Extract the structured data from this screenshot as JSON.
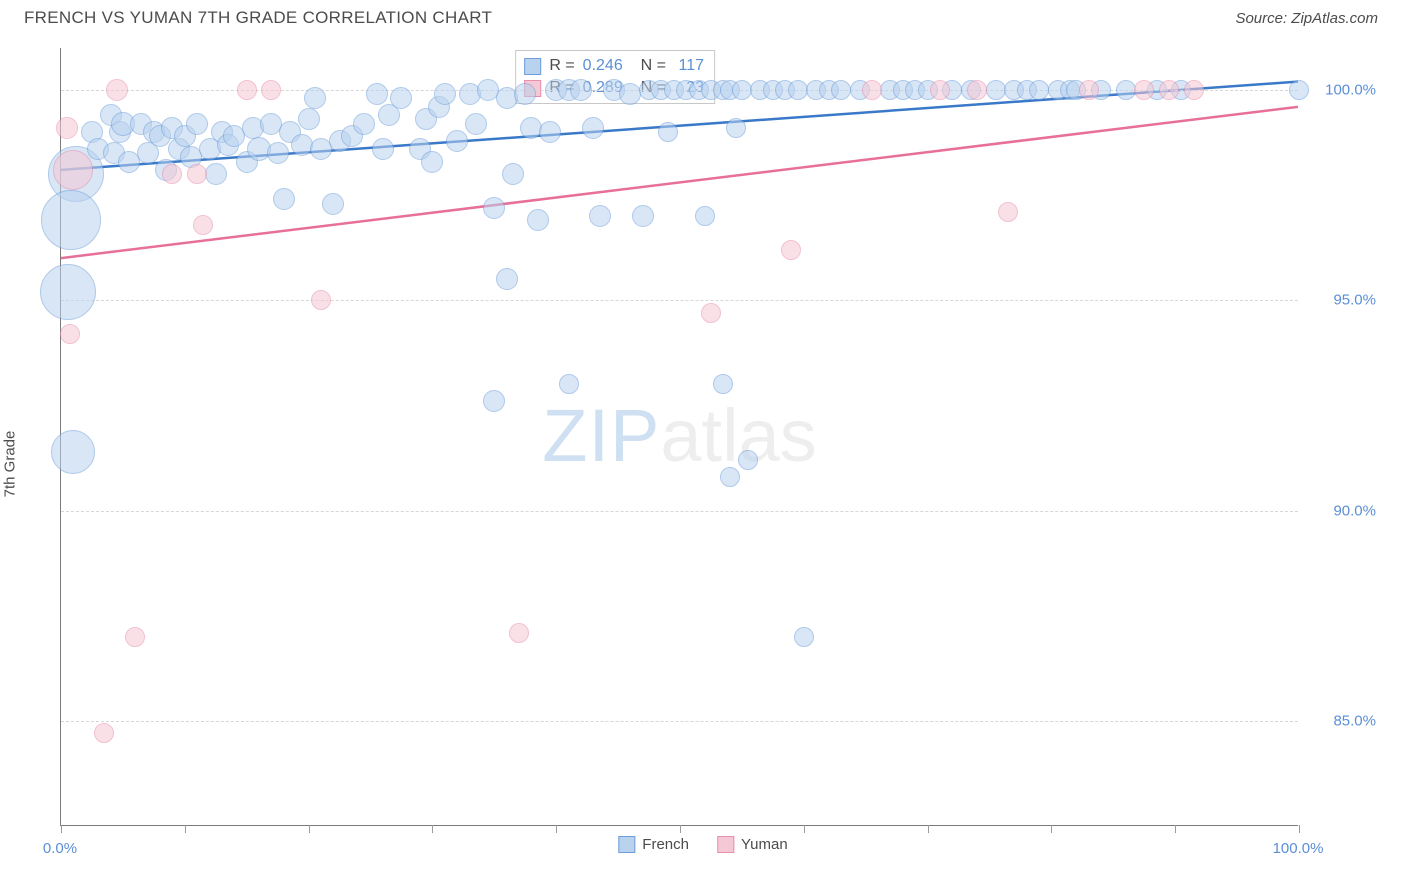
{
  "title": "FRENCH VS YUMAN 7TH GRADE CORRELATION CHART",
  "source": "Source: ZipAtlas.com",
  "watermark_zip": "ZIP",
  "watermark_atlas": "atlas",
  "chart": {
    "type": "scatter",
    "xlim": [
      0,
      100
    ],
    "ylim": [
      82.5,
      101.0
    ],
    "xlabel": "",
    "ylabel": "7th Grade",
    "xtick_label_min": "0.0%",
    "xtick_label_max": "100.0%",
    "xtick_positions": [
      0,
      10,
      20,
      30,
      40,
      50,
      60,
      70,
      80,
      90,
      100
    ],
    "yticks": [
      {
        "v": 85.0,
        "label": "85.0%"
      },
      {
        "v": 90.0,
        "label": "90.0%"
      },
      {
        "v": 95.0,
        "label": "95.0%"
      },
      {
        "v": 100.0,
        "label": "100.0%"
      }
    ],
    "background_color": "#ffffff",
    "grid_color": "#d7d7d7",
    "axis_color": "#7a7a7a",
    "series": [
      {
        "name": "French",
        "label": "French",
        "fill": "#b9d2ee",
        "stroke": "#6d9edb",
        "line_color": "#3a78c9",
        "fill_opacity": 0.55,
        "r": 0.246,
        "n": 117,
        "trend": {
          "x1": 0,
          "y1": 98.1,
          "x2": 100,
          "y2": 100.2
        },
        "points": [
          {
            "x": 1.2,
            "y": 98.0,
            "r": 28
          },
          {
            "x": 0.8,
            "y": 96.9,
            "r": 30
          },
          {
            "x": 0.6,
            "y": 95.2,
            "r": 28
          },
          {
            "x": 1.0,
            "y": 91.4,
            "r": 22
          },
          {
            "x": 2.5,
            "y": 99.0,
            "r": 11
          },
          {
            "x": 3.0,
            "y": 98.6,
            "r": 11
          },
          {
            "x": 4.0,
            "y": 99.4,
            "r": 11
          },
          {
            "x": 4.3,
            "y": 98.5,
            "r": 11
          },
          {
            "x": 4.8,
            "y": 99.0,
            "r": 11
          },
          {
            "x": 5.5,
            "y": 98.3,
            "r": 11
          },
          {
            "x": 5.0,
            "y": 99.2,
            "r": 12
          },
          {
            "x": 6.5,
            "y": 99.2,
            "r": 11
          },
          {
            "x": 7.0,
            "y": 98.5,
            "r": 11
          },
          {
            "x": 7.5,
            "y": 99.0,
            "r": 11
          },
          {
            "x": 8.0,
            "y": 98.9,
            "r": 11
          },
          {
            "x": 8.5,
            "y": 98.1,
            "r": 11
          },
          {
            "x": 9.0,
            "y": 99.1,
            "r": 11
          },
          {
            "x": 9.5,
            "y": 98.6,
            "r": 11
          },
          {
            "x": 10.0,
            "y": 98.9,
            "r": 11
          },
          {
            "x": 10.5,
            "y": 98.4,
            "r": 11
          },
          {
            "x": 11.0,
            "y": 99.2,
            "r": 11
          },
          {
            "x": 12.0,
            "y": 98.6,
            "r": 11
          },
          {
            "x": 12.5,
            "y": 98.0,
            "r": 11
          },
          {
            "x": 13.0,
            "y": 99.0,
            "r": 11
          },
          {
            "x": 13.5,
            "y": 98.7,
            "r": 11
          },
          {
            "x": 14.0,
            "y": 98.9,
            "r": 11
          },
          {
            "x": 15.0,
            "y": 98.3,
            "r": 11
          },
          {
            "x": 15.5,
            "y": 99.1,
            "r": 11
          },
          {
            "x": 16.0,
            "y": 98.6,
            "r": 12
          },
          {
            "x": 17.0,
            "y": 99.2,
            "r": 11
          },
          {
            "x": 17.5,
            "y": 98.5,
            "r": 11
          },
          {
            "x": 18.0,
            "y": 97.4,
            "r": 11
          },
          {
            "x": 18.5,
            "y": 99.0,
            "r": 11
          },
          {
            "x": 19.5,
            "y": 98.7,
            "r": 11
          },
          {
            "x": 20.0,
            "y": 99.3,
            "r": 11
          },
          {
            "x": 20.5,
            "y": 99.8,
            "r": 11
          },
          {
            "x": 21.0,
            "y": 98.6,
            "r": 11
          },
          {
            "x": 22.0,
            "y": 97.3,
            "r": 11
          },
          {
            "x": 22.5,
            "y": 98.8,
            "r": 11
          },
          {
            "x": 23.5,
            "y": 98.9,
            "r": 11
          },
          {
            "x": 24.5,
            "y": 99.2,
            "r": 11
          },
          {
            "x": 25.5,
            "y": 99.9,
            "r": 11
          },
          {
            "x": 26.5,
            "y": 99.4,
            "r": 11
          },
          {
            "x": 26.0,
            "y": 98.6,
            "r": 11
          },
          {
            "x": 29.0,
            "y": 98.6,
            "r": 11
          },
          {
            "x": 27.5,
            "y": 99.8,
            "r": 11
          },
          {
            "x": 29.5,
            "y": 99.3,
            "r": 11
          },
          {
            "x": 30.0,
            "y": 98.3,
            "r": 11
          },
          {
            "x": 30.5,
            "y": 99.6,
            "r": 11
          },
          {
            "x": 31.0,
            "y": 99.9,
            "r": 11
          },
          {
            "x": 32.0,
            "y": 98.8,
            "r": 11
          },
          {
            "x": 33.0,
            "y": 99.9,
            "r": 11
          },
          {
            "x": 33.5,
            "y": 99.2,
            "r": 11
          },
          {
            "x": 34.5,
            "y": 100.0,
            "r": 11
          },
          {
            "x": 35.0,
            "y": 97.2,
            "r": 11
          },
          {
            "x": 36.0,
            "y": 99.8,
            "r": 11
          },
          {
            "x": 36.5,
            "y": 98.0,
            "r": 11
          },
          {
            "x": 37.5,
            "y": 99.9,
            "r": 11
          },
          {
            "x": 38.0,
            "y": 99.1,
            "r": 11
          },
          {
            "x": 38.5,
            "y": 96.9,
            "r": 11
          },
          {
            "x": 39.5,
            "y": 99.0,
            "r": 11
          },
          {
            "x": 40.0,
            "y": 100.0,
            "r": 11
          },
          {
            "x": 41.0,
            "y": 100.0,
            "r": 11
          },
          {
            "x": 42.0,
            "y": 100.0,
            "r": 11
          },
          {
            "x": 43.0,
            "y": 99.1,
            "r": 11
          },
          {
            "x": 43.5,
            "y": 97.0,
            "r": 11
          },
          {
            "x": 35.0,
            "y": 92.6,
            "r": 11
          },
          {
            "x": 36.0,
            "y": 95.5,
            "r": 11
          },
          {
            "x": 44.7,
            "y": 100.0,
            "r": 11
          },
          {
            "x": 46.0,
            "y": 99.9,
            "r": 11
          },
          {
            "x": 41.0,
            "y": 93.0,
            "r": 10
          },
          {
            "x": 47.0,
            "y": 97.0,
            "r": 11
          },
          {
            "x": 47.5,
            "y": 100.0,
            "r": 10
          },
          {
            "x": 48.5,
            "y": 100.0,
            "r": 10
          },
          {
            "x": 49.5,
            "y": 100.0,
            "r": 10
          },
          {
            "x": 49.0,
            "y": 99.0,
            "r": 10
          },
          {
            "x": 50.5,
            "y": 100.0,
            "r": 10
          },
          {
            "x": 51.5,
            "y": 100.0,
            "r": 10
          },
          {
            "x": 52.0,
            "y": 97.0,
            "r": 10
          },
          {
            "x": 52.5,
            "y": 100.0,
            "r": 10
          },
          {
            "x": 53.5,
            "y": 100.0,
            "r": 10
          },
          {
            "x": 54.5,
            "y": 99.1,
            "r": 10
          },
          {
            "x": 54.0,
            "y": 100.0,
            "r": 10
          },
          {
            "x": 55.0,
            "y": 100.0,
            "r": 10
          },
          {
            "x": 55.5,
            "y": 91.2,
            "r": 10
          },
          {
            "x": 56.5,
            "y": 100.0,
            "r": 10
          },
          {
            "x": 57.5,
            "y": 100.0,
            "r": 10
          },
          {
            "x": 58.5,
            "y": 100.0,
            "r": 10
          },
          {
            "x": 59.5,
            "y": 100.0,
            "r": 10
          },
          {
            "x": 61.0,
            "y": 100.0,
            "r": 10
          },
          {
            "x": 62.0,
            "y": 100.0,
            "r": 10
          },
          {
            "x": 63.0,
            "y": 100.0,
            "r": 10
          },
          {
            "x": 64.5,
            "y": 100.0,
            "r": 10
          },
          {
            "x": 67.0,
            "y": 100.0,
            "r": 10
          },
          {
            "x": 68.0,
            "y": 100.0,
            "r": 10
          },
          {
            "x": 69.0,
            "y": 100.0,
            "r": 10
          },
          {
            "x": 70.0,
            "y": 100.0,
            "r": 10
          },
          {
            "x": 72.0,
            "y": 100.0,
            "r": 10
          },
          {
            "x": 73.5,
            "y": 100.0,
            "r": 10
          },
          {
            "x": 75.5,
            "y": 100.0,
            "r": 10
          },
          {
            "x": 77.0,
            "y": 100.0,
            "r": 10
          },
          {
            "x": 78.0,
            "y": 100.0,
            "r": 10
          },
          {
            "x": 79.0,
            "y": 100.0,
            "r": 10
          },
          {
            "x": 80.5,
            "y": 100.0,
            "r": 10
          },
          {
            "x": 81.5,
            "y": 100.0,
            "r": 10
          },
          {
            "x": 82.0,
            "y": 100.0,
            "r": 10
          },
          {
            "x": 84.0,
            "y": 100.0,
            "r": 10
          },
          {
            "x": 86.0,
            "y": 100.0,
            "r": 10
          },
          {
            "x": 88.5,
            "y": 100.0,
            "r": 10
          },
          {
            "x": 90.5,
            "y": 100.0,
            "r": 10
          },
          {
            "x": 100.0,
            "y": 100.0,
            "r": 10
          },
          {
            "x": 53.5,
            "y": 93.0,
            "r": 10
          },
          {
            "x": 54.0,
            "y": 90.8,
            "r": 10
          },
          {
            "x": 60.0,
            "y": 87.0,
            "r": 10
          }
        ]
      },
      {
        "name": "Yuman",
        "label": "Yuman",
        "fill": "#f5c8d5",
        "stroke": "#e98fae",
        "line_color": "#e76f9a",
        "fill_opacity": 0.55,
        "r": 0.289,
        "n": 23,
        "trend": {
          "x1": 0,
          "y1": 96.0,
          "x2": 100,
          "y2": 99.6
        },
        "points": [
          {
            "x": 0.5,
            "y": 99.1,
            "r": 11
          },
          {
            "x": 0.7,
            "y": 94.2,
            "r": 10
          },
          {
            "x": 1.0,
            "y": 98.1,
            "r": 20
          },
          {
            "x": 4.5,
            "y": 100.0,
            "r": 11
          },
          {
            "x": 3.5,
            "y": 84.7,
            "r": 10
          },
          {
            "x": 6.0,
            "y": 87.0,
            "r": 10
          },
          {
            "x": 9.0,
            "y": 98.0,
            "r": 10
          },
          {
            "x": 11.0,
            "y": 98.0,
            "r": 10
          },
          {
            "x": 11.5,
            "y": 96.8,
            "r": 10
          },
          {
            "x": 15.0,
            "y": 100.0,
            "r": 10
          },
          {
            "x": 17.0,
            "y": 100.0,
            "r": 10
          },
          {
            "x": 21.0,
            "y": 95.0,
            "r": 10
          },
          {
            "x": 37.0,
            "y": 87.1,
            "r": 10
          },
          {
            "x": 52.5,
            "y": 94.7,
            "r": 10
          },
          {
            "x": 59.0,
            "y": 96.2,
            "r": 10
          },
          {
            "x": 65.5,
            "y": 100.0,
            "r": 10
          },
          {
            "x": 71.0,
            "y": 100.0,
            "r": 10
          },
          {
            "x": 74.0,
            "y": 100.0,
            "r": 10
          },
          {
            "x": 76.5,
            "y": 97.1,
            "r": 10
          },
          {
            "x": 83.0,
            "y": 100.0,
            "r": 10
          },
          {
            "x": 87.5,
            "y": 100.0,
            "r": 10
          },
          {
            "x": 89.5,
            "y": 100.0,
            "r": 10
          },
          {
            "x": 91.5,
            "y": 100.0,
            "r": 10
          }
        ]
      }
    ],
    "rn_legend": {
      "r_label": "R =",
      "n_label": "N ="
    },
    "bottom_legend_series": [
      {
        "label": "French",
        "fill": "#b9d2ee",
        "stroke": "#6d9edb"
      },
      {
        "label": "Yuman",
        "fill": "#f5c8d5",
        "stroke": "#e98fae"
      }
    ]
  }
}
